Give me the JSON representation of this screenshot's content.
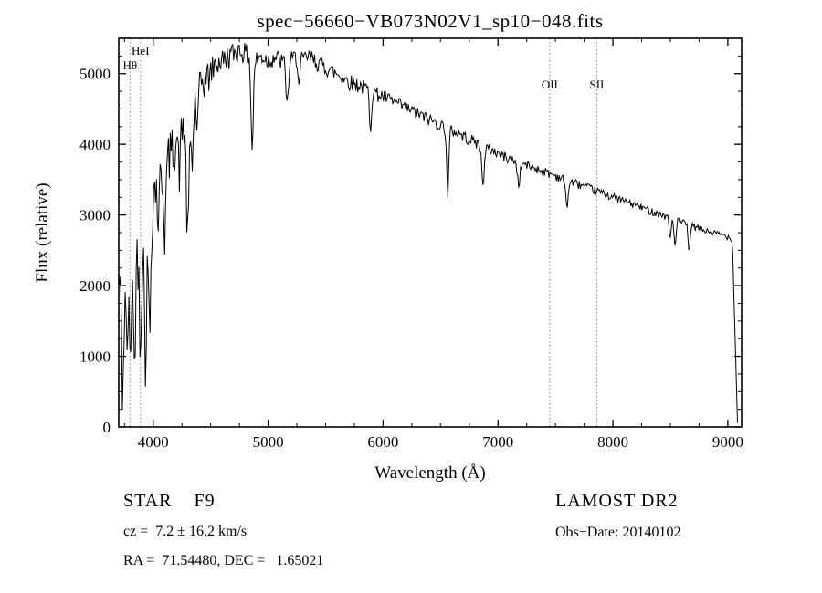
{
  "chart_data": {
    "type": "line",
    "title": "spec−56660−VB073N02V1_sp10−048.fits",
    "xlabel": "Wavelength (Å)",
    "ylabel": "Flux (relative)",
    "xlim": [
      3700,
      9120
    ],
    "ylim": [
      0,
      5500
    ],
    "x_ticks": [
      4000,
      5000,
      6000,
      7000,
      8000,
      9000
    ],
    "y_ticks": [
      0,
      1000,
      2000,
      3000,
      4000,
      5000
    ],
    "x_minor_step": 250,
    "y_minor_step": 250,
    "grid": false,
    "legend": "none",
    "line_color": "#000000",
    "marker_color": "#888888",
    "line_markers": [
      {
        "label": "HeI",
        "wavelength": 3889,
        "label_y": 60
      },
      {
        "label": "Hθ",
        "wavelength": 3798,
        "label_y": 76
      },
      {
        "label": "OII",
        "wavelength": 7450,
        "label_y": 97
      },
      {
        "label": "SII",
        "wavelength": 7860,
        "label_y": 97
      }
    ],
    "sample_step": 8,
    "noise_seed": 42,
    "spectrum": {
      "x_start": 3700,
      "x_step": 50,
      "flux": [
        2100,
        2250,
        2350,
        2400,
        2700,
        3000,
        3350,
        3600,
        3750,
        3950,
        4100,
        4250,
        4450,
        4700,
        4850,
        4950,
        5050,
        5150,
        5200,
        5250,
        5300,
        5350,
        5300,
        5250,
        5200,
        5250,
        5200,
        5250,
        5200,
        5150,
        5200,
        5250,
        5200,
        5250,
        5200,
        5150,
        5100,
        5050,
        5000,
        4950,
        4900,
        4870,
        4840,
        4800,
        4760,
        4720,
        4680,
        4640,
        4600,
        4560,
        4520,
        4480,
        4440,
        4400,
        4360,
        4320,
        4280,
        4240,
        4200,
        4160,
        4120,
        4080,
        4040,
        4000,
        3960,
        3920,
        3880,
        3840,
        3800,
        3770,
        3740,
        3710,
        3680,
        3650,
        3620,
        3590,
        3560,
        3530,
        3500,
        3470,
        3440,
        3410,
        3380,
        3350,
        3320,
        3290,
        3260,
        3230,
        3200,
        3170,
        3140,
        3110,
        3080,
        3050,
        3020,
        2990,
        2960,
        2930,
        2900,
        2870,
        2840,
        2810,
        2780,
        2760,
        2740,
        2720,
        2700,
        2650,
        2600
      ]
    },
    "absorption_lines": [
      [
        3735,
        1600,
        10
      ],
      [
        3770,
        1200,
        8
      ],
      [
        3798,
        1400,
        8
      ],
      [
        3835,
        1500,
        8
      ],
      [
        3889,
        1300,
        8
      ],
      [
        3933,
        1800,
        10
      ],
      [
        3969,
        1700,
        10
      ],
      [
        4045,
        600,
        8
      ],
      [
        4101,
        900,
        10
      ],
      [
        4227,
        500,
        8
      ],
      [
        4300,
        1700,
        12
      ],
      [
        4340,
        900,
        10
      ],
      [
        4383,
        600,
        8
      ],
      [
        4861,
        1300,
        10
      ],
      [
        5167,
        600,
        10
      ],
      [
        5270,
        400,
        8
      ],
      [
        5890,
        500,
        9
      ],
      [
        6563,
        950,
        9
      ],
      [
        6870,
        500,
        12
      ],
      [
        7180,
        300,
        12
      ],
      [
        7600,
        350,
        12
      ],
      [
        8498,
        300,
        8
      ],
      [
        8542,
        400,
        8
      ],
      [
        8662,
        400,
        8
      ]
    ],
    "noise_profile": [
      [
        3700,
        350
      ],
      [
        3900,
        300
      ],
      [
        4100,
        260
      ],
      [
        4400,
        180
      ],
      [
        4800,
        130
      ],
      [
        5300,
        110
      ],
      [
        5800,
        95
      ],
      [
        6300,
        80
      ],
      [
        6800,
        70
      ],
      [
        7300,
        55
      ],
      [
        7800,
        50
      ],
      [
        8300,
        45
      ],
      [
        8800,
        40
      ],
      [
        9120,
        35
      ]
    ],
    "cutoff": {
      "start": 9040,
      "end": 9085
    }
  },
  "annotations": {
    "star_line": "STAR    F9",
    "cz_line": "cz =  7.2 ± 16.2 km/s",
    "ra_dec_line": "RA =  71.54480, DEC =   1.65021",
    "survey": "LAMOST DR2",
    "obs_date": "Obs−Date: 20140102"
  }
}
